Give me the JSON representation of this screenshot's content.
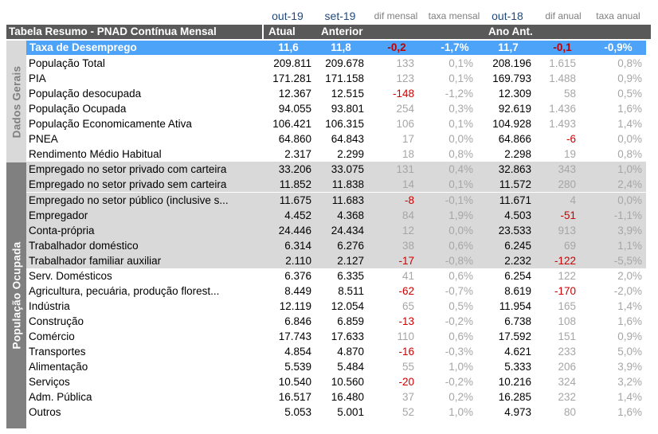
{
  "header": {
    "periods": {
      "atual": "out-19",
      "anterior": "set-19",
      "dif_mensal": "dif mensal",
      "taxa_mensal": "taxa mensal",
      "ano_ant": "out-18",
      "dif_anual": "dif anual",
      "taxa_anual": "taxa anual"
    },
    "title": "Tabela Resumo - PNAD Contínua Mensal",
    "col_atual": "Atual",
    "col_anterior": "Anterior",
    "col_ano_ant": "Ano Ant."
  },
  "taxa": {
    "label": "Taxa de Desemprego",
    "atual": "11,6",
    "anterior": "11,8",
    "dif_mensal": "-0,2",
    "taxa_mensal": "-1,7%",
    "ano_ant": "11,7",
    "dif_anual": "-0,1",
    "taxa_anual": "-0,9%"
  },
  "groups": {
    "dados_gerais": "Dados Gerais",
    "populacao_ocupada": "População Ocupada"
  },
  "rows": [
    {
      "label": "População Total",
      "atual": "209.811",
      "anterior": "209.678",
      "dif_mensal": "133",
      "taxa_mensal": "0,1%",
      "ano_ant": "208.196",
      "dif_anual": "1.615",
      "taxa_anual": "0,8%"
    },
    {
      "label": "PIA",
      "atual": "171.281",
      "anterior": "171.158",
      "dif_mensal": "123",
      "taxa_mensal": "0,1%",
      "ano_ant": "169.793",
      "dif_anual": "1.488",
      "taxa_anual": "0,9%"
    },
    {
      "label": "População desocupada",
      "atual": "12.367",
      "anterior": "12.515",
      "dif_mensal": "-148",
      "taxa_mensal": "-1,2%",
      "ano_ant": "12.309",
      "dif_anual": "58",
      "taxa_anual": "0,5%"
    },
    {
      "label": "População Ocupada",
      "atual": "94.055",
      "anterior": "93.801",
      "dif_mensal": "254",
      "taxa_mensal": "0,3%",
      "ano_ant": "92.619",
      "dif_anual": "1.436",
      "taxa_anual": "1,6%"
    },
    {
      "label": "População Economicamente Ativa",
      "atual": "106.421",
      "anterior": "106.315",
      "dif_mensal": "106",
      "taxa_mensal": "0,1%",
      "ano_ant": "104.928",
      "dif_anual": "1.493",
      "taxa_anual": "1,4%"
    },
    {
      "label": "PNEA",
      "atual": "64.860",
      "anterior": "64.843",
      "dif_mensal": "17",
      "taxa_mensal": "0,0%",
      "ano_ant": "64.866",
      "dif_anual": "-6",
      "taxa_anual": "0,0%"
    },
    {
      "label": "Rendimento Médio Habitual",
      "atual": "2.317",
      "anterior": "2.299",
      "dif_mensal": "18",
      "taxa_mensal": "0,8%",
      "ano_ant": "2.298",
      "dif_anual": "19",
      "taxa_anual": "0,8%"
    },
    {
      "label": "Empregado no setor privado com carteira",
      "atual": "33.206",
      "anterior": "33.075",
      "dif_mensal": "131",
      "taxa_mensal": "0,4%",
      "ano_ant": "32.863",
      "dif_anual": "343",
      "taxa_anual": "1,0%"
    },
    {
      "label": "Empregado no setor privado sem carteira",
      "atual": "11.852",
      "anterior": "11.838",
      "dif_mensal": "14",
      "taxa_mensal": "0,1%",
      "ano_ant": "11.572",
      "dif_anual": "280",
      "taxa_anual": "2,4%"
    },
    {
      "label": "Empregado no setor público (inclusive s...",
      "atual": "11.675",
      "anterior": "11.683",
      "dif_mensal": "-8",
      "taxa_mensal": "-0,1%",
      "ano_ant": "11.671",
      "dif_anual": "4",
      "taxa_anual": "0,0%"
    },
    {
      "label": "Empregador",
      "atual": "4.452",
      "anterior": "4.368",
      "dif_mensal": "84",
      "taxa_mensal": "1,9%",
      "ano_ant": "4.503",
      "dif_anual": "-51",
      "taxa_anual": "-1,1%"
    },
    {
      "label": "Conta-própria",
      "atual": "24.446",
      "anterior": "24.434",
      "dif_mensal": "12",
      "taxa_mensal": "0,0%",
      "ano_ant": "23.533",
      "dif_anual": "913",
      "taxa_anual": "3,9%"
    },
    {
      "label": "Trabalhador doméstico",
      "atual": "6.314",
      "anterior": "6.276",
      "dif_mensal": "38",
      "taxa_mensal": "0,6%",
      "ano_ant": "6.245",
      "dif_anual": "69",
      "taxa_anual": "1,1%"
    },
    {
      "label": "Trabalhador familiar auxiliar",
      "atual": "2.110",
      "anterior": "2.127",
      "dif_mensal": "-17",
      "taxa_mensal": "-0,8%",
      "ano_ant": "2.232",
      "dif_anual": "-122",
      "taxa_anual": "-5,5%"
    },
    {
      "label": "Serv. Domésticos",
      "atual": "6.376",
      "anterior": "6.335",
      "dif_mensal": "41",
      "taxa_mensal": "0,6%",
      "ano_ant": "6.254",
      "dif_anual": "122",
      "taxa_anual": "2,0%"
    },
    {
      "label": "Agricultura, pecuária, produção florest...",
      "atual": "8.449",
      "anterior": "8.511",
      "dif_mensal": "-62",
      "taxa_mensal": "-0,7%",
      "ano_ant": "8.619",
      "dif_anual": "-170",
      "taxa_anual": "-2,0%"
    },
    {
      "label": "Indústria",
      "atual": "12.119",
      "anterior": "12.054",
      "dif_mensal": "65",
      "taxa_mensal": "0,5%",
      "ano_ant": "11.954",
      "dif_anual": "165",
      "taxa_anual": "1,4%"
    },
    {
      "label": "Construção",
      "atual": "6.846",
      "anterior": "6.859",
      "dif_mensal": "-13",
      "taxa_mensal": "-0,2%",
      "ano_ant": "6.738",
      "dif_anual": "108",
      "taxa_anual": "1,6%"
    },
    {
      "label": "Comércio",
      "atual": "17.743",
      "anterior": "17.633",
      "dif_mensal": "110",
      "taxa_mensal": "0,6%",
      "ano_ant": "17.592",
      "dif_anual": "151",
      "taxa_anual": "0,9%"
    },
    {
      "label": "Transportes",
      "atual": "4.854",
      "anterior": "4.870",
      "dif_mensal": "-16",
      "taxa_mensal": "-0,3%",
      "ano_ant": "4.621",
      "dif_anual": "233",
      "taxa_anual": "5,0%"
    },
    {
      "label": "Alimentação",
      "atual": "5.539",
      "anterior": "5.484",
      "dif_mensal": "55",
      "taxa_mensal": "1,0%",
      "ano_ant": "5.333",
      "dif_anual": "206",
      "taxa_anual": "3,9%"
    },
    {
      "label": "Serviços",
      "atual": "10.540",
      "anterior": "10.560",
      "dif_mensal": "-20",
      "taxa_mensal": "-0,2%",
      "ano_ant": "10.216",
      "dif_anual": "324",
      "taxa_anual": "3,2%"
    },
    {
      "label": "Adm. Pública",
      "atual": "16.517",
      "anterior": "16.480",
      "dif_mensal": "37",
      "taxa_mensal": "0,2%",
      "ano_ant": "16.285",
      "dif_anual": "232",
      "taxa_anual": "1,4%"
    },
    {
      "label": "Outros",
      "atual": "5.053",
      "anterior": "5.001",
      "dif_mensal": "52",
      "taxa_mensal": "1,0%",
      "ano_ant": "4.973",
      "dif_anual": "80",
      "taxa_anual": "1,6%"
    }
  ],
  "colors": {
    "header_bar": "#595959",
    "taxa_row": "#4da3f7",
    "shaded_rows": "#d9d9d9",
    "side_dark": "#808080",
    "side_light": "#d9d9d9",
    "negative": "#cc0000",
    "muted": "#a6a6a6",
    "period_header": "#1f497d"
  }
}
